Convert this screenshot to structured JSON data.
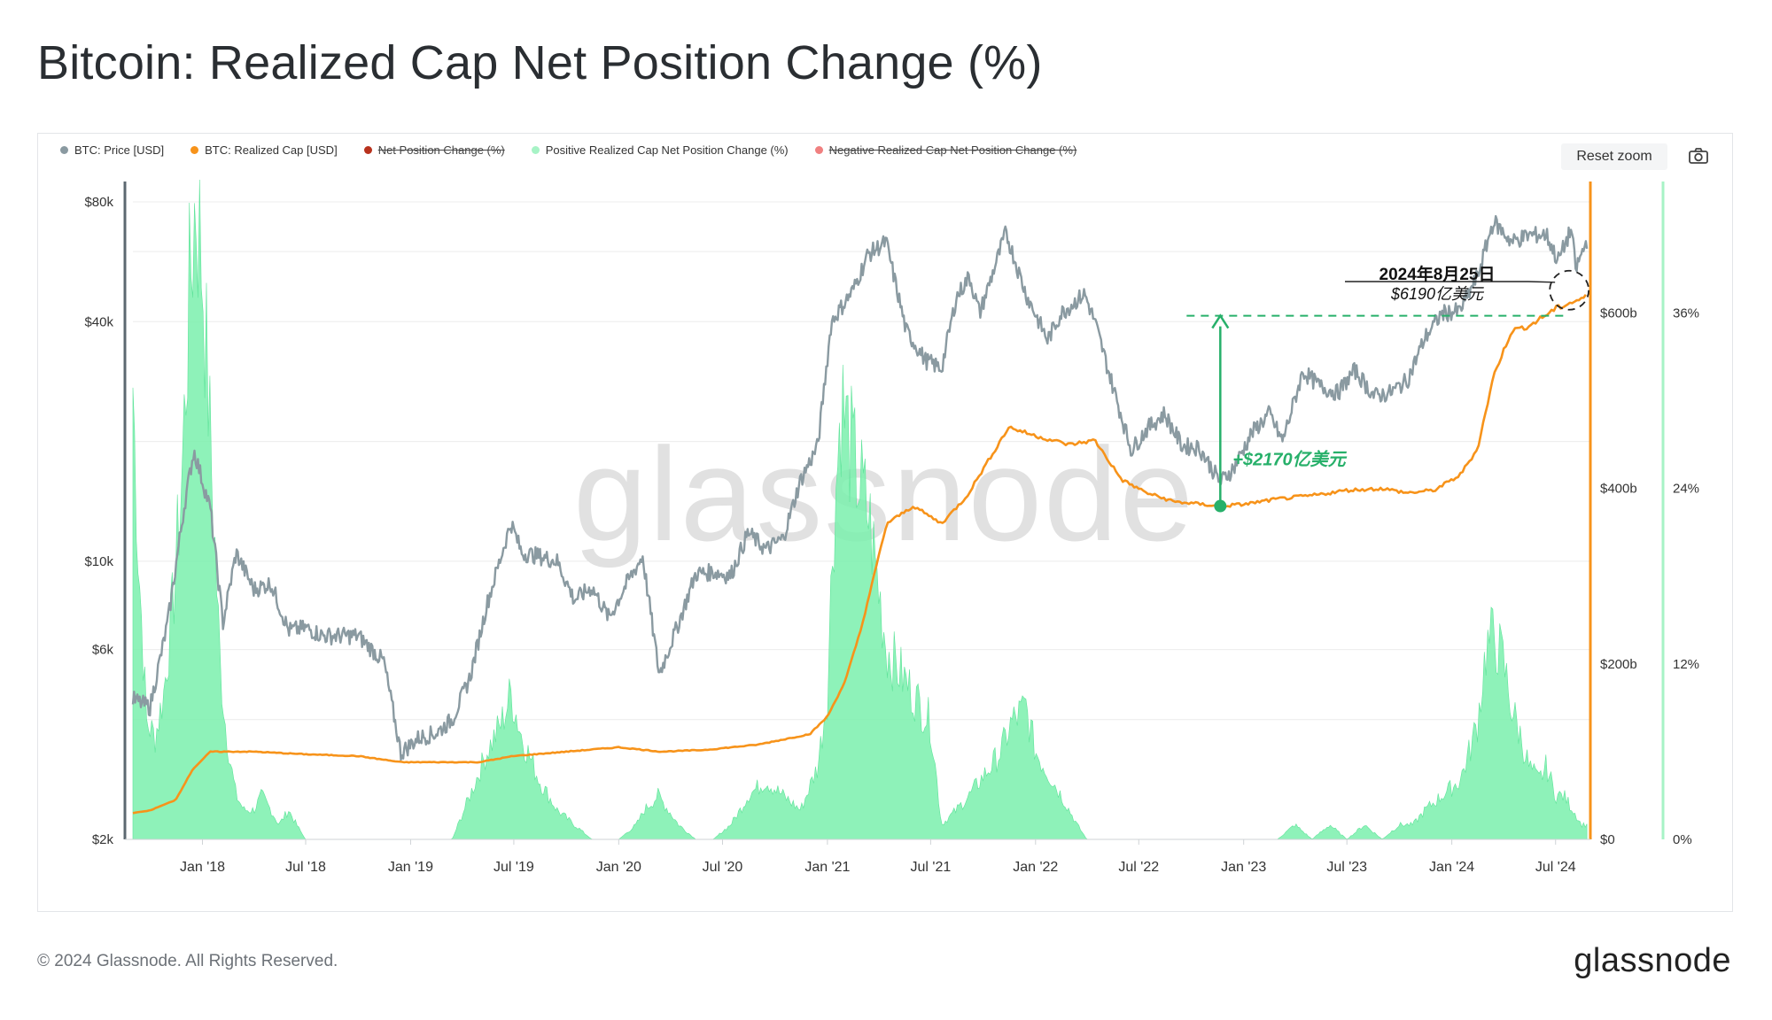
{
  "title": "Bitcoin: Realized Cap Net Position Change (%)",
  "legend": [
    {
      "label": "BTC: Price [USD]",
      "color": "#8a9aa1",
      "enabled": true
    },
    {
      "label": "BTC: Realized Cap [USD]",
      "color": "#f7931a",
      "enabled": true
    },
    {
      "label": "Net Position Change (%)",
      "color": "#b8321d",
      "enabled": false
    },
    {
      "label": "Positive Realized Cap Net Position Change (%)",
      "color": "#a7f3c6",
      "enabled": true
    },
    {
      "label": "Negative Realized Cap Net Position Change (%)",
      "color": "#f08080",
      "enabled": false
    }
  ],
  "toolbar": {
    "reset_zoom": "Reset zoom",
    "camera_icon": "camera-icon"
  },
  "watermark": "glassnode",
  "footer": {
    "copyright": "© 2024 Glassnode. All Rights Reserved.",
    "logo": "glassnode"
  },
  "annotations": {
    "date_label": "2024年8月25日",
    "value_label": "$6190亿美元",
    "gain_label": "+$2170亿美元"
  },
  "colors": {
    "price": "#8a9aa1",
    "realized_cap": "#f7931a",
    "positive": "#6ef0a6",
    "annotation_green": "#27b06a"
  },
  "chart_data": {
    "type": "line",
    "x_tick_labels": [
      "Jan '18",
      "Jul '18",
      "Jan '19",
      "Jul '19",
      "Jan '20",
      "Jul '20",
      "Jan '21",
      "Jul '21",
      "Jan '22",
      "Jul '22",
      "Jan '23",
      "Jul '23",
      "Jan '24",
      "Jul '24"
    ],
    "x_range": [
      "2017-09-01",
      "2024-08-31"
    ],
    "y_left": {
      "scale": "log",
      "range": [
        2000,
        90000
      ],
      "tick_labels": [
        "$2k",
        "$6k",
        "$10k",
        "$40k",
        "$80k"
      ],
      "tick_values": [
        2000,
        6000,
        10000,
        40000,
        80000
      ]
    },
    "y_right1": {
      "range": [
        0,
        750
      ],
      "tick_labels": [
        "$0",
        "$200b",
        "$400b",
        "$600b"
      ],
      "tick_values": [
        0,
        200,
        400,
        600
      ]
    },
    "y_right2": {
      "range": [
        0,
        45
      ],
      "tick_labels": [
        "0%",
        "12%",
        "24%",
        "36%"
      ],
      "tick_values": [
        0,
        12,
        24,
        36
      ]
    },
    "series": [
      {
        "name": "BTC: Price [USD]",
        "x": [
          "2017-09-01",
          "2017-10-01",
          "2017-11-01",
          "2017-12-01",
          "2017-12-17",
          "2018-01-15",
          "2018-02-06",
          "2018-03-01",
          "2018-04-01",
          "2018-05-01",
          "2018-06-01",
          "2018-07-01",
          "2018-08-01",
          "2018-09-01",
          "2018-10-01",
          "2018-11-15",
          "2018-12-15",
          "2019-01-15",
          "2019-02-15",
          "2019-03-15",
          "2019-04-15",
          "2019-05-15",
          "2019-06-26",
          "2019-07-15",
          "2019-08-15",
          "2019-09-15",
          "2019-10-15",
          "2019-11-15",
          "2019-12-15",
          "2020-01-15",
          "2020-02-12",
          "2020-03-12",
          "2020-04-15",
          "2020-05-15",
          "2020-06-15",
          "2020-07-15",
          "2020-08-15",
          "2020-09-15",
          "2020-10-15",
          "2020-11-15",
          "2020-12-15",
          "2021-01-08",
          "2021-02-15",
          "2021-03-13",
          "2021-04-14",
          "2021-05-19",
          "2021-06-22",
          "2021-07-20",
          "2021-08-15",
          "2021-09-07",
          "2021-09-25",
          "2021-11-10",
          "2021-12-15",
          "2022-01-22",
          "2022-02-15",
          "2022-03-28",
          "2022-04-15",
          "2022-05-12",
          "2022-06-18",
          "2022-07-15",
          "2022-08-15",
          "2022-09-15",
          "2022-10-15",
          "2022-11-21",
          "2022-12-15",
          "2023-01-15",
          "2023-02-15",
          "2023-03-10",
          "2023-04-15",
          "2023-05-15",
          "2023-06-15",
          "2023-07-15",
          "2023-08-18",
          "2023-09-15",
          "2023-10-15",
          "2023-11-15",
          "2023-12-15",
          "2024-01-15",
          "2024-02-15",
          "2024-03-14",
          "2024-04-15",
          "2024-05-15",
          "2024-06-15",
          "2024-07-05",
          "2024-07-29",
          "2024-08-05",
          "2024-08-25"
        ],
        "values": [
          4500,
          4300,
          7000,
          14000,
          19000,
          13500,
          7000,
          10500,
          8500,
          8800,
          6700,
          6800,
          6500,
          6500,
          6500,
          5600,
          3300,
          3600,
          3700,
          4000,
          5100,
          7800,
          12500,
          10500,
          10300,
          10000,
          8000,
          8600,
          7200,
          8800,
          10300,
          5200,
          7000,
          9300,
          9400,
          9200,
          11800,
          10700,
          11400,
          16000,
          19500,
          40000,
          48000,
          59000,
          63500,
          38000,
          32000,
          30500,
          46000,
          52000,
          42000,
          67000,
          47000,
          36000,
          42000,
          47000,
          40000,
          29000,
          19000,
          21500,
          23500,
          19500,
          19300,
          15800,
          17200,
          21000,
          23500,
          20000,
          30000,
          27500,
          26500,
          30200,
          26000,
          26500,
          28500,
          36500,
          42000,
          42500,
          52000,
          71500,
          63500,
          66000,
          66200,
          56800,
          68500,
          54000,
          64000
        ]
      },
      {
        "name": "BTC: Realized Cap [USD]",
        "x": [
          "2017-09-01",
          "2017-10-01",
          "2017-11-15",
          "2017-12-15",
          "2018-01-15",
          "2018-04-01",
          "2018-07-01",
          "2018-10-01",
          "2018-12-15",
          "2019-03-01",
          "2019-05-01",
          "2019-07-01",
          "2019-10-01",
          "2020-01-01",
          "2020-03-15",
          "2020-06-01",
          "2020-09-01",
          "2020-12-01",
          "2021-01-01",
          "2021-02-01",
          "2021-03-01",
          "2021-04-15",
          "2021-06-01",
          "2021-07-20",
          "2021-09-01",
          "2021-11-15",
          "2022-01-01",
          "2022-03-01",
          "2022-04-15",
          "2022-06-01",
          "2022-07-15",
          "2022-09-01",
          "2022-11-21",
          "2023-01-01",
          "2023-03-01",
          "2023-05-01",
          "2023-07-01",
          "2023-09-01",
          "2023-10-15",
          "2023-12-01",
          "2024-01-15",
          "2024-02-15",
          "2024-03-15",
          "2024-04-15",
          "2024-05-15",
          "2024-07-01",
          "2024-08-25"
        ],
        "values": [
          30,
          33,
          45,
          80,
          100,
          100,
          97,
          95,
          88,
          88,
          88,
          95,
          100,
          105,
          100,
          102,
          108,
          120,
          140,
          180,
          240,
          360,
          380,
          360,
          390,
          470,
          460,
          450,
          455,
          410,
          395,
          385,
          380,
          382,
          388,
          392,
          398,
          400,
          395,
          398,
          415,
          445,
          530,
          580,
          585,
          605,
          619
        ]
      },
      {
        "name": "Positive Realized Cap Net Position Change (%)",
        "x": [
          "2017-09-01",
          "2017-09-10",
          "2017-09-25",
          "2017-10-10",
          "2017-10-25",
          "2017-11-10",
          "2017-11-25",
          "2017-12-10",
          "2017-12-20",
          "2018-01-01",
          "2018-01-15",
          "2018-02-01",
          "2018-02-10",
          "2018-02-20",
          "2018-03-01",
          "2018-03-15",
          "2018-04-01",
          "2018-04-15",
          "2018-05-01",
          "2018-05-15",
          "2018-06-01",
          "2018-06-15",
          "2018-07-01",
          "2019-03-15",
          "2019-04-15",
          "2019-05-15",
          "2019-06-10",
          "2019-06-26",
          "2019-07-15",
          "2019-08-15",
          "2019-09-15",
          "2019-10-15",
          "2019-11-15",
          "2020-01-01",
          "2020-02-01",
          "2020-02-15",
          "2020-03-10",
          "2020-04-15",
          "2020-05-15",
          "2020-06-15",
          "2020-07-15",
          "2020-08-01",
          "2020-08-15",
          "2020-09-15",
          "2020-10-15",
          "2020-11-15",
          "2020-12-15",
          "2021-01-01",
          "2021-01-10",
          "2021-01-25",
          "2021-02-15",
          "2021-03-15",
          "2021-04-15",
          "2021-05-15",
          "2021-06-15",
          "2021-07-01",
          "2021-07-20",
          "2021-08-15",
          "2021-09-07",
          "2021-09-25",
          "2021-10-15",
          "2021-11-01",
          "2021-11-20",
          "2021-12-15",
          "2022-01-01",
          "2022-02-15",
          "2022-03-15",
          "2022-04-01",
          "2022-04-15",
          "2022-06-01",
          "2022-10-01",
          "2023-01-01",
          "2023-02-01",
          "2023-03-01",
          "2023-04-01",
          "2023-05-01",
          "2023-06-01",
          "2023-07-01",
          "2023-08-01",
          "2023-09-01",
          "2023-10-01",
          "2023-10-25",
          "2023-11-15",
          "2023-12-15",
          "2024-01-15",
          "2024-02-01",
          "2024-02-15",
          "2024-03-01",
          "2024-03-15",
          "2024-04-01",
          "2024-04-15",
          "2024-05-01",
          "2024-05-15",
          "2024-06-01",
          "2024-06-15",
          "2024-07-01",
          "2024-07-15",
          "2024-08-01",
          "2024-08-15",
          "2024-08-25"
        ],
        "values": [
          31,
          20,
          8,
          7,
          10,
          16,
          24,
          38,
          44,
          39,
          27,
          12,
          8,
          5,
          3,
          2,
          2,
          3,
          2,
          1,
          2,
          1,
          0,
          0,
          3,
          6,
          8,
          10,
          7,
          4,
          2,
          1,
          0,
          0,
          1,
          2,
          3,
          1,
          0,
          0,
          1,
          2,
          3,
          4,
          3,
          2,
          5,
          10,
          20,
          30,
          26,
          22,
          13,
          11,
          9,
          8,
          1,
          2,
          3,
          4,
          5,
          6,
          8,
          9,
          6,
          3,
          1,
          0,
          0,
          0,
          0,
          0,
          0,
          0,
          1,
          0,
          1,
          0,
          1,
          0,
          1,
          1,
          2,
          3,
          4,
          6,
          8,
          13,
          14,
          12,
          9,
          7,
          5,
          4,
          5,
          3,
          3,
          2,
          1,
          1
        ]
      }
    ],
    "annotation_points": [
      {
        "label": "+$2170亿美元",
        "x": "2022-11-21",
        "y_from": 380,
        "y_to": 597
      },
      {
        "label": "2024年8月25日 $6190亿美元",
        "x": "2024-08-25",
        "y": 619
      }
    ]
  }
}
